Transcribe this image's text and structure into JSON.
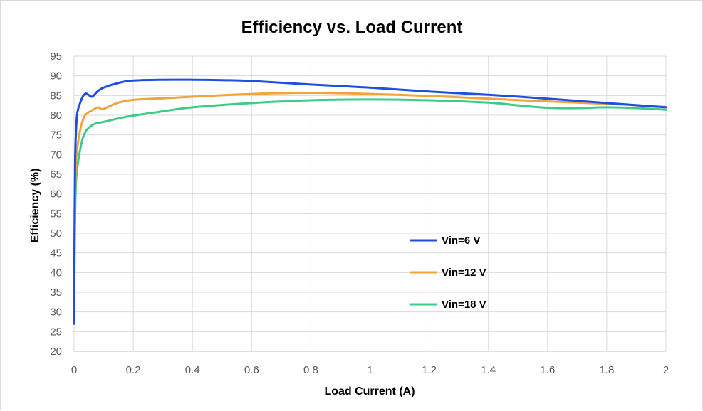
{
  "chart_data": {
    "type": "line",
    "title": "Efficiency vs. Load Current",
    "xlabel": "Load Current (A)",
    "ylabel": "Efficiency (%)",
    "xlim": [
      0,
      2
    ],
    "ylim": [
      20,
      95
    ],
    "xticks": [
      "0",
      "0.2",
      "0.4",
      "0.6",
      "0.8",
      "1",
      "1.2",
      "1.4",
      "1.6",
      "1.8",
      "2"
    ],
    "yticks": [
      "20",
      "25",
      "30",
      "35",
      "40",
      "45",
      "50",
      "55",
      "60",
      "65",
      "70",
      "75",
      "80",
      "85",
      "90",
      "95"
    ],
    "grid": true,
    "legend_position": "center-right",
    "series": [
      {
        "name": "Vin=6 V",
        "color": "#1f4fe0",
        "points": [
          [
            0.0,
            27
          ],
          [
            0.002,
            55
          ],
          [
            0.004,
            70
          ],
          [
            0.008,
            78
          ],
          [
            0.012,
            81
          ],
          [
            0.02,
            83
          ],
          [
            0.03,
            84.8
          ],
          [
            0.04,
            85.5
          ],
          [
            0.05,
            85.1
          ],
          [
            0.06,
            84.7
          ],
          [
            0.07,
            85.3
          ],
          [
            0.08,
            86.1
          ],
          [
            0.1,
            87
          ],
          [
            0.15,
            88.2
          ],
          [
            0.2,
            88.8
          ],
          [
            0.3,
            89
          ],
          [
            0.4,
            89
          ],
          [
            0.5,
            88.9
          ],
          [
            0.6,
            88.7
          ],
          [
            0.8,
            87.8
          ],
          [
            1.0,
            87
          ],
          [
            1.2,
            86
          ],
          [
            1.4,
            85.2
          ],
          [
            1.6,
            84.2
          ],
          [
            1.8,
            83.1
          ],
          [
            2.0,
            82
          ]
        ]
      },
      {
        "name": "Vin=12 V",
        "color": "#f2a33a",
        "points": [
          [
            0.0,
            27
          ],
          [
            0.002,
            50
          ],
          [
            0.005,
            65
          ],
          [
            0.01,
            71
          ],
          [
            0.02,
            76
          ],
          [
            0.03,
            78.8
          ],
          [
            0.04,
            80.2
          ],
          [
            0.06,
            81.2
          ],
          [
            0.08,
            82
          ],
          [
            0.09,
            81.6
          ],
          [
            0.1,
            81.6
          ],
          [
            0.12,
            82.3
          ],
          [
            0.15,
            83.2
          ],
          [
            0.2,
            83.9
          ],
          [
            0.3,
            84.3
          ],
          [
            0.4,
            84.7
          ],
          [
            0.6,
            85.4
          ],
          [
            0.8,
            85.7
          ],
          [
            1.0,
            85.4
          ],
          [
            1.2,
            84.9
          ],
          [
            1.4,
            84.2
          ],
          [
            1.6,
            83.5
          ],
          [
            1.8,
            82.9
          ],
          [
            2.0,
            82.1
          ]
        ]
      },
      {
        "name": "Vin=18 V",
        "color": "#3dcc85",
        "points": [
          [
            0.0,
            27
          ],
          [
            0.002,
            45
          ],
          [
            0.005,
            60
          ],
          [
            0.01,
            66
          ],
          [
            0.02,
            71
          ],
          [
            0.03,
            74.3
          ],
          [
            0.04,
            76
          ],
          [
            0.05,
            76.8
          ],
          [
            0.07,
            77.8
          ],
          [
            0.1,
            78.3
          ],
          [
            0.15,
            79.2
          ],
          [
            0.2,
            79.9
          ],
          [
            0.3,
            81
          ],
          [
            0.4,
            82
          ],
          [
            0.6,
            83.1
          ],
          [
            0.8,
            83.8
          ],
          [
            1.0,
            84
          ],
          [
            1.2,
            83.8
          ],
          [
            1.4,
            83.2
          ],
          [
            1.5,
            82.5
          ],
          [
            1.6,
            81.9
          ],
          [
            1.7,
            81.8
          ],
          [
            1.8,
            82
          ],
          [
            1.9,
            81.8
          ],
          [
            2.0,
            81.4
          ]
        ]
      }
    ]
  }
}
